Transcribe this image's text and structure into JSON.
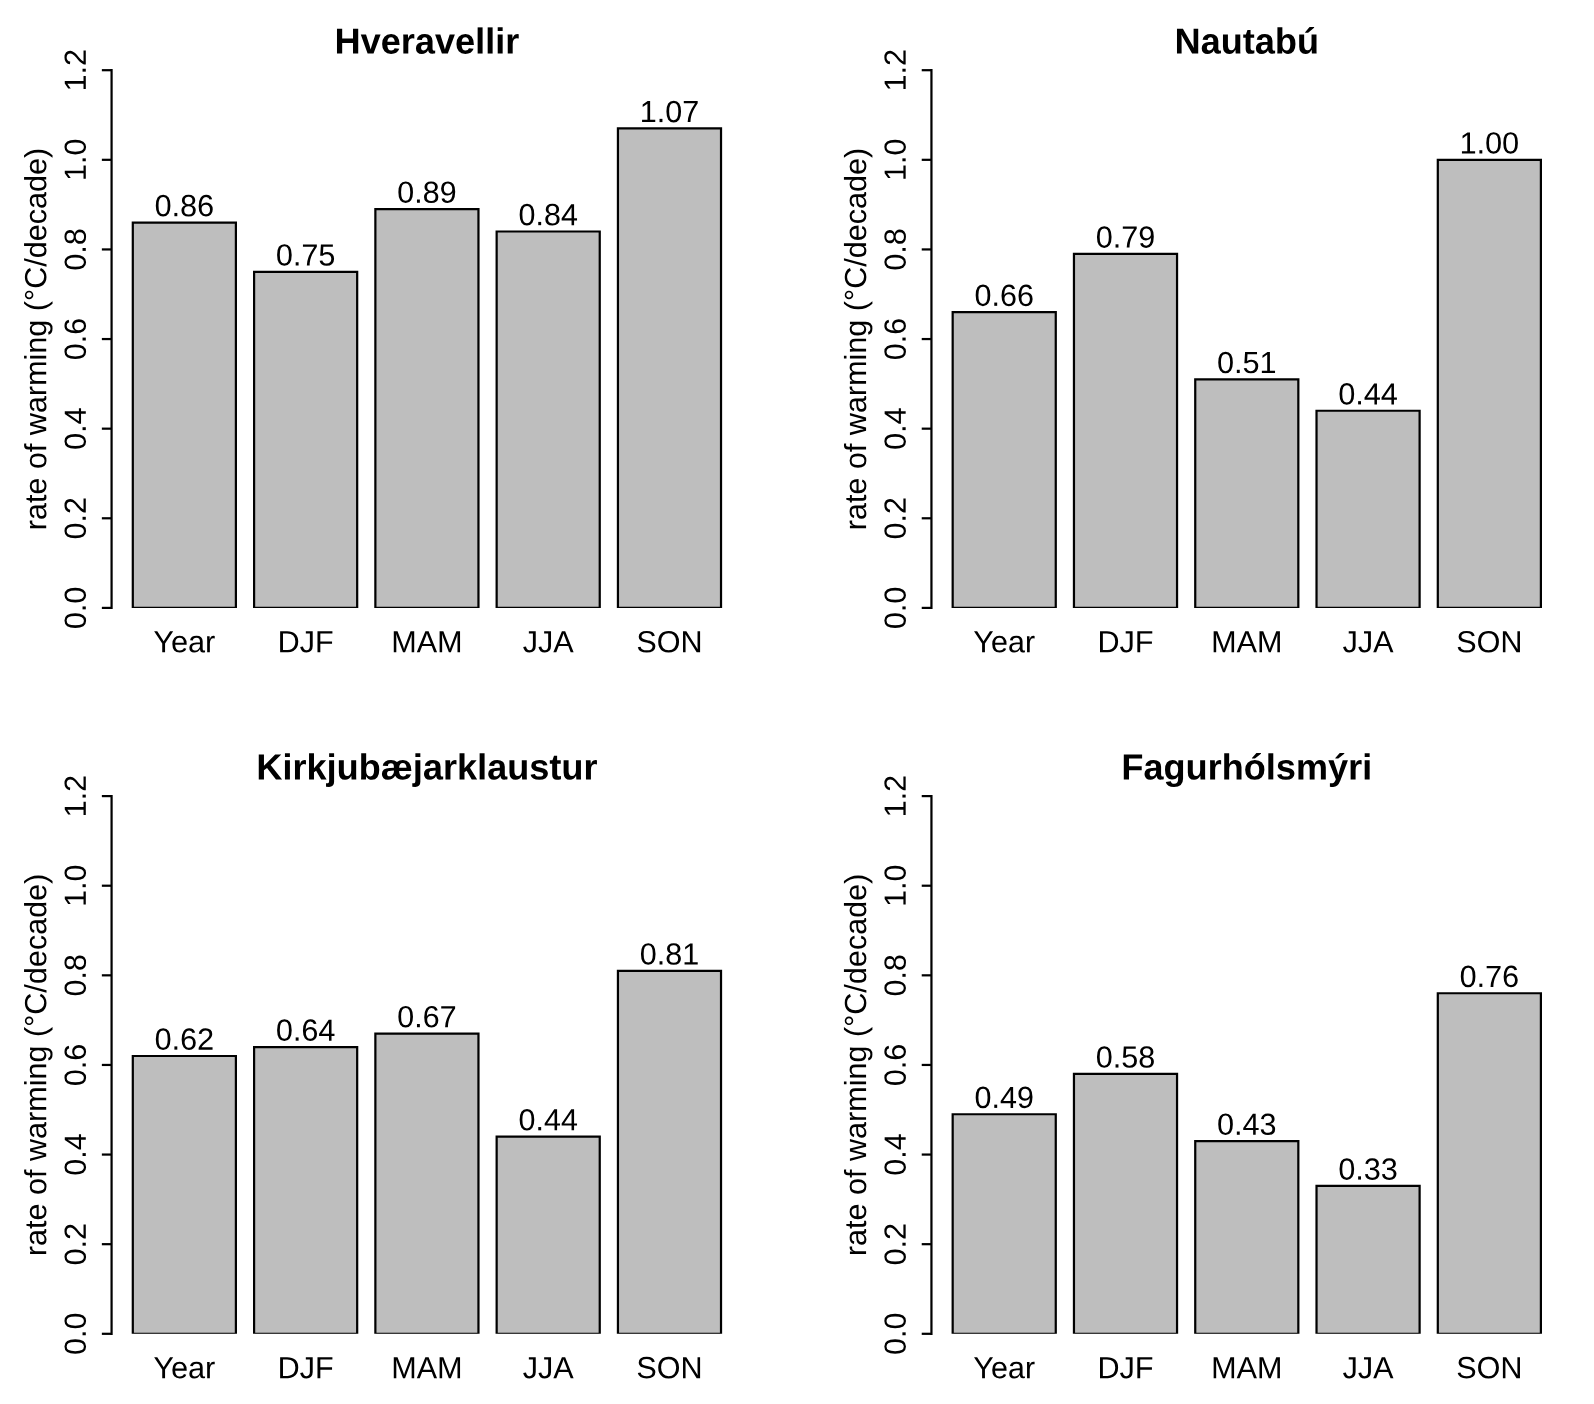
{
  "chart_data": [
    {
      "type": "bar",
      "title": "Hveravellir",
      "ylabel": "rate of warming (°C/decade)",
      "categories": [
        "Year",
        "DJF",
        "MAM",
        "JJA",
        "SON"
      ],
      "values": [
        0.86,
        0.75,
        0.89,
        0.84,
        1.07
      ],
      "value_labels": [
        "0.86",
        "0.75",
        "0.89",
        "0.84",
        "1.07"
      ],
      "color": "#bebebe",
      "ylim": [
        0,
        1.2
      ],
      "yticks": [
        {
          "value": 0,
          "label": "0.0"
        },
        {
          "value": 0.2,
          "label": "0.2"
        },
        {
          "value": 0.4,
          "label": "0.4"
        },
        {
          "value": 0.6,
          "label": "0.6"
        },
        {
          "value": 0.8,
          "label": "0.8"
        },
        {
          "value": 1.0,
          "label": "1.0"
        },
        {
          "value": 1.2,
          "label": "1.2"
        }
      ],
      "grid": false,
      "legend": false
    },
    {
      "type": "bar",
      "title": "Nautabú",
      "ylabel": "rate of warming (°C/decade)",
      "categories": [
        "Year",
        "DJF",
        "MAM",
        "JJA",
        "SON"
      ],
      "values": [
        0.66,
        0.79,
        0.51,
        0.44,
        1.0
      ],
      "value_labels": [
        "0.66",
        "0.79",
        "0.51",
        "0.44",
        "1.00"
      ],
      "color": "#bebebe",
      "ylim": [
        0,
        1.2
      ],
      "yticks": [
        {
          "value": 0,
          "label": "0.0"
        },
        {
          "value": 0.2,
          "label": "0.2"
        },
        {
          "value": 0.4,
          "label": "0.4"
        },
        {
          "value": 0.6,
          "label": "0.6"
        },
        {
          "value": 0.8,
          "label": "0.8"
        },
        {
          "value": 1.0,
          "label": "1.0"
        },
        {
          "value": 1.2,
          "label": "1.2"
        }
      ],
      "grid": false,
      "legend": false
    },
    {
      "type": "bar",
      "title": "Kirkjubæjarklaustur",
      "ylabel": "rate of warming (°C/decade)",
      "categories": [
        "Year",
        "DJF",
        "MAM",
        "JJA",
        "SON"
      ],
      "values": [
        0.62,
        0.64,
        0.67,
        0.44,
        0.81
      ],
      "value_labels": [
        "0.62",
        "0.64",
        "0.67",
        "0.44",
        "0.81"
      ],
      "color": "#bebebe",
      "ylim": [
        0,
        1.2
      ],
      "yticks": [
        {
          "value": 0,
          "label": "0.0"
        },
        {
          "value": 0.2,
          "label": "0.2"
        },
        {
          "value": 0.4,
          "label": "0.4"
        },
        {
          "value": 0.6,
          "label": "0.6"
        },
        {
          "value": 0.8,
          "label": "0.8"
        },
        {
          "value": 1.0,
          "label": "1.0"
        },
        {
          "value": 1.2,
          "label": "1.2"
        }
      ],
      "grid": false,
      "legend": false
    },
    {
      "type": "bar",
      "title": "Fagurhólsmýri",
      "ylabel": "rate of warming (°C/decade)",
      "categories": [
        "Year",
        "DJF",
        "MAM",
        "JJA",
        "SON"
      ],
      "values": [
        0.49,
        0.58,
        0.43,
        0.33,
        0.76
      ],
      "value_labels": [
        "0.49",
        "0.58",
        "0.43",
        "0.33",
        "0.76"
      ],
      "color": "#bebebe",
      "ylim": [
        0,
        1.2
      ],
      "yticks": [
        {
          "value": 0,
          "label": "0.0"
        },
        {
          "value": 0.2,
          "label": "0.2"
        },
        {
          "value": 0.4,
          "label": "0.4"
        },
        {
          "value": 0.6,
          "label": "0.6"
        },
        {
          "value": 0.8,
          "label": "0.8"
        },
        {
          "value": 1.0,
          "label": "1.0"
        },
        {
          "value": 1.2,
          "label": "1.2"
        }
      ],
      "grid": false,
      "legend": false
    }
  ]
}
